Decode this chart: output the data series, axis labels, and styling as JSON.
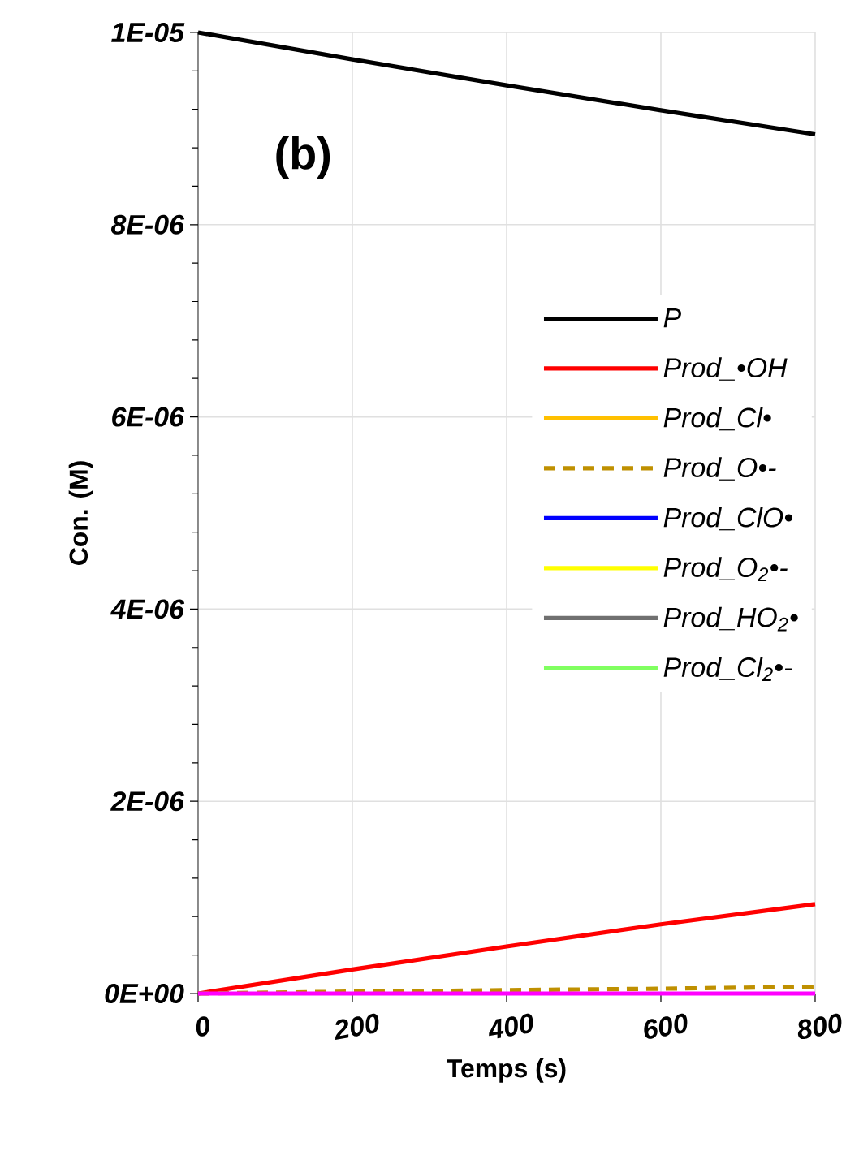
{
  "chart_data": {
    "type": "line",
    "xlabel": "Temps (s)",
    "ylabel": "Con. (M)",
    "annotations": [
      "(b)"
    ],
    "x": [
      0,
      200,
      400,
      600,
      800
    ],
    "xlim": [
      0,
      800
    ],
    "xticks": [
      0,
      200,
      400,
      600,
      800
    ],
    "ylim": [
      0,
      1e-05
    ],
    "yticks": [
      {
        "value": 0,
        "label": "0E+00"
      },
      {
        "value": 2e-06,
        "label": "2E-06"
      },
      {
        "value": 4e-06,
        "label": "4E-06"
      },
      {
        "value": 6e-06,
        "label": "6E-06"
      },
      {
        "value": 8e-06,
        "label": "8E-06"
      },
      {
        "value": 1e-05,
        "label": "1E-05"
      }
    ],
    "grid": true,
    "legend": "right",
    "series": [
      {
        "name": "P",
        "color": "#000000",
        "values": [
          1e-05,
          9.72e-06,
          9.45e-06,
          9.19e-06,
          8.94e-06
        ]
      },
      {
        "name": "Prod_•OH",
        "color": "#ff0000",
        "values": [
          0,
          2.5e-07,
          4.9e-07,
          7.2e-07,
          9.3e-07
        ]
      },
      {
        "name": "Prod_Cl•",
        "color": "#ffc000",
        "values": [
          null,
          null,
          null,
          null,
          null
        ]
      },
      {
        "name": "Prod_O•-",
        "color": "#bf9000",
        "line_style": "dashed",
        "values": [
          0,
          2e-08,
          3.5e-08,
          5e-08,
          7e-08
        ]
      },
      {
        "name": "Prod_ClO•",
        "color": "#0000ff",
        "values": [
          null,
          null,
          null,
          null,
          null
        ]
      },
      {
        "name": "Prod_O$_{2}$•-",
        "color": "#ffff00",
        "values": [
          null,
          null,
          null,
          null,
          null
        ]
      },
      {
        "name": "Prod_HO$_{2}$•",
        "color": "#707070",
        "values": [
          null,
          null,
          null,
          null,
          null
        ]
      },
      {
        "name": "Prod_Cl$_{2}$•-",
        "color": "#80ff60",
        "values": [
          null,
          null,
          null,
          null,
          null
        ]
      },
      {
        "color": "#ff00ff",
        "values": [
          0,
          0,
          0,
          0,
          0
        ]
      }
    ]
  }
}
